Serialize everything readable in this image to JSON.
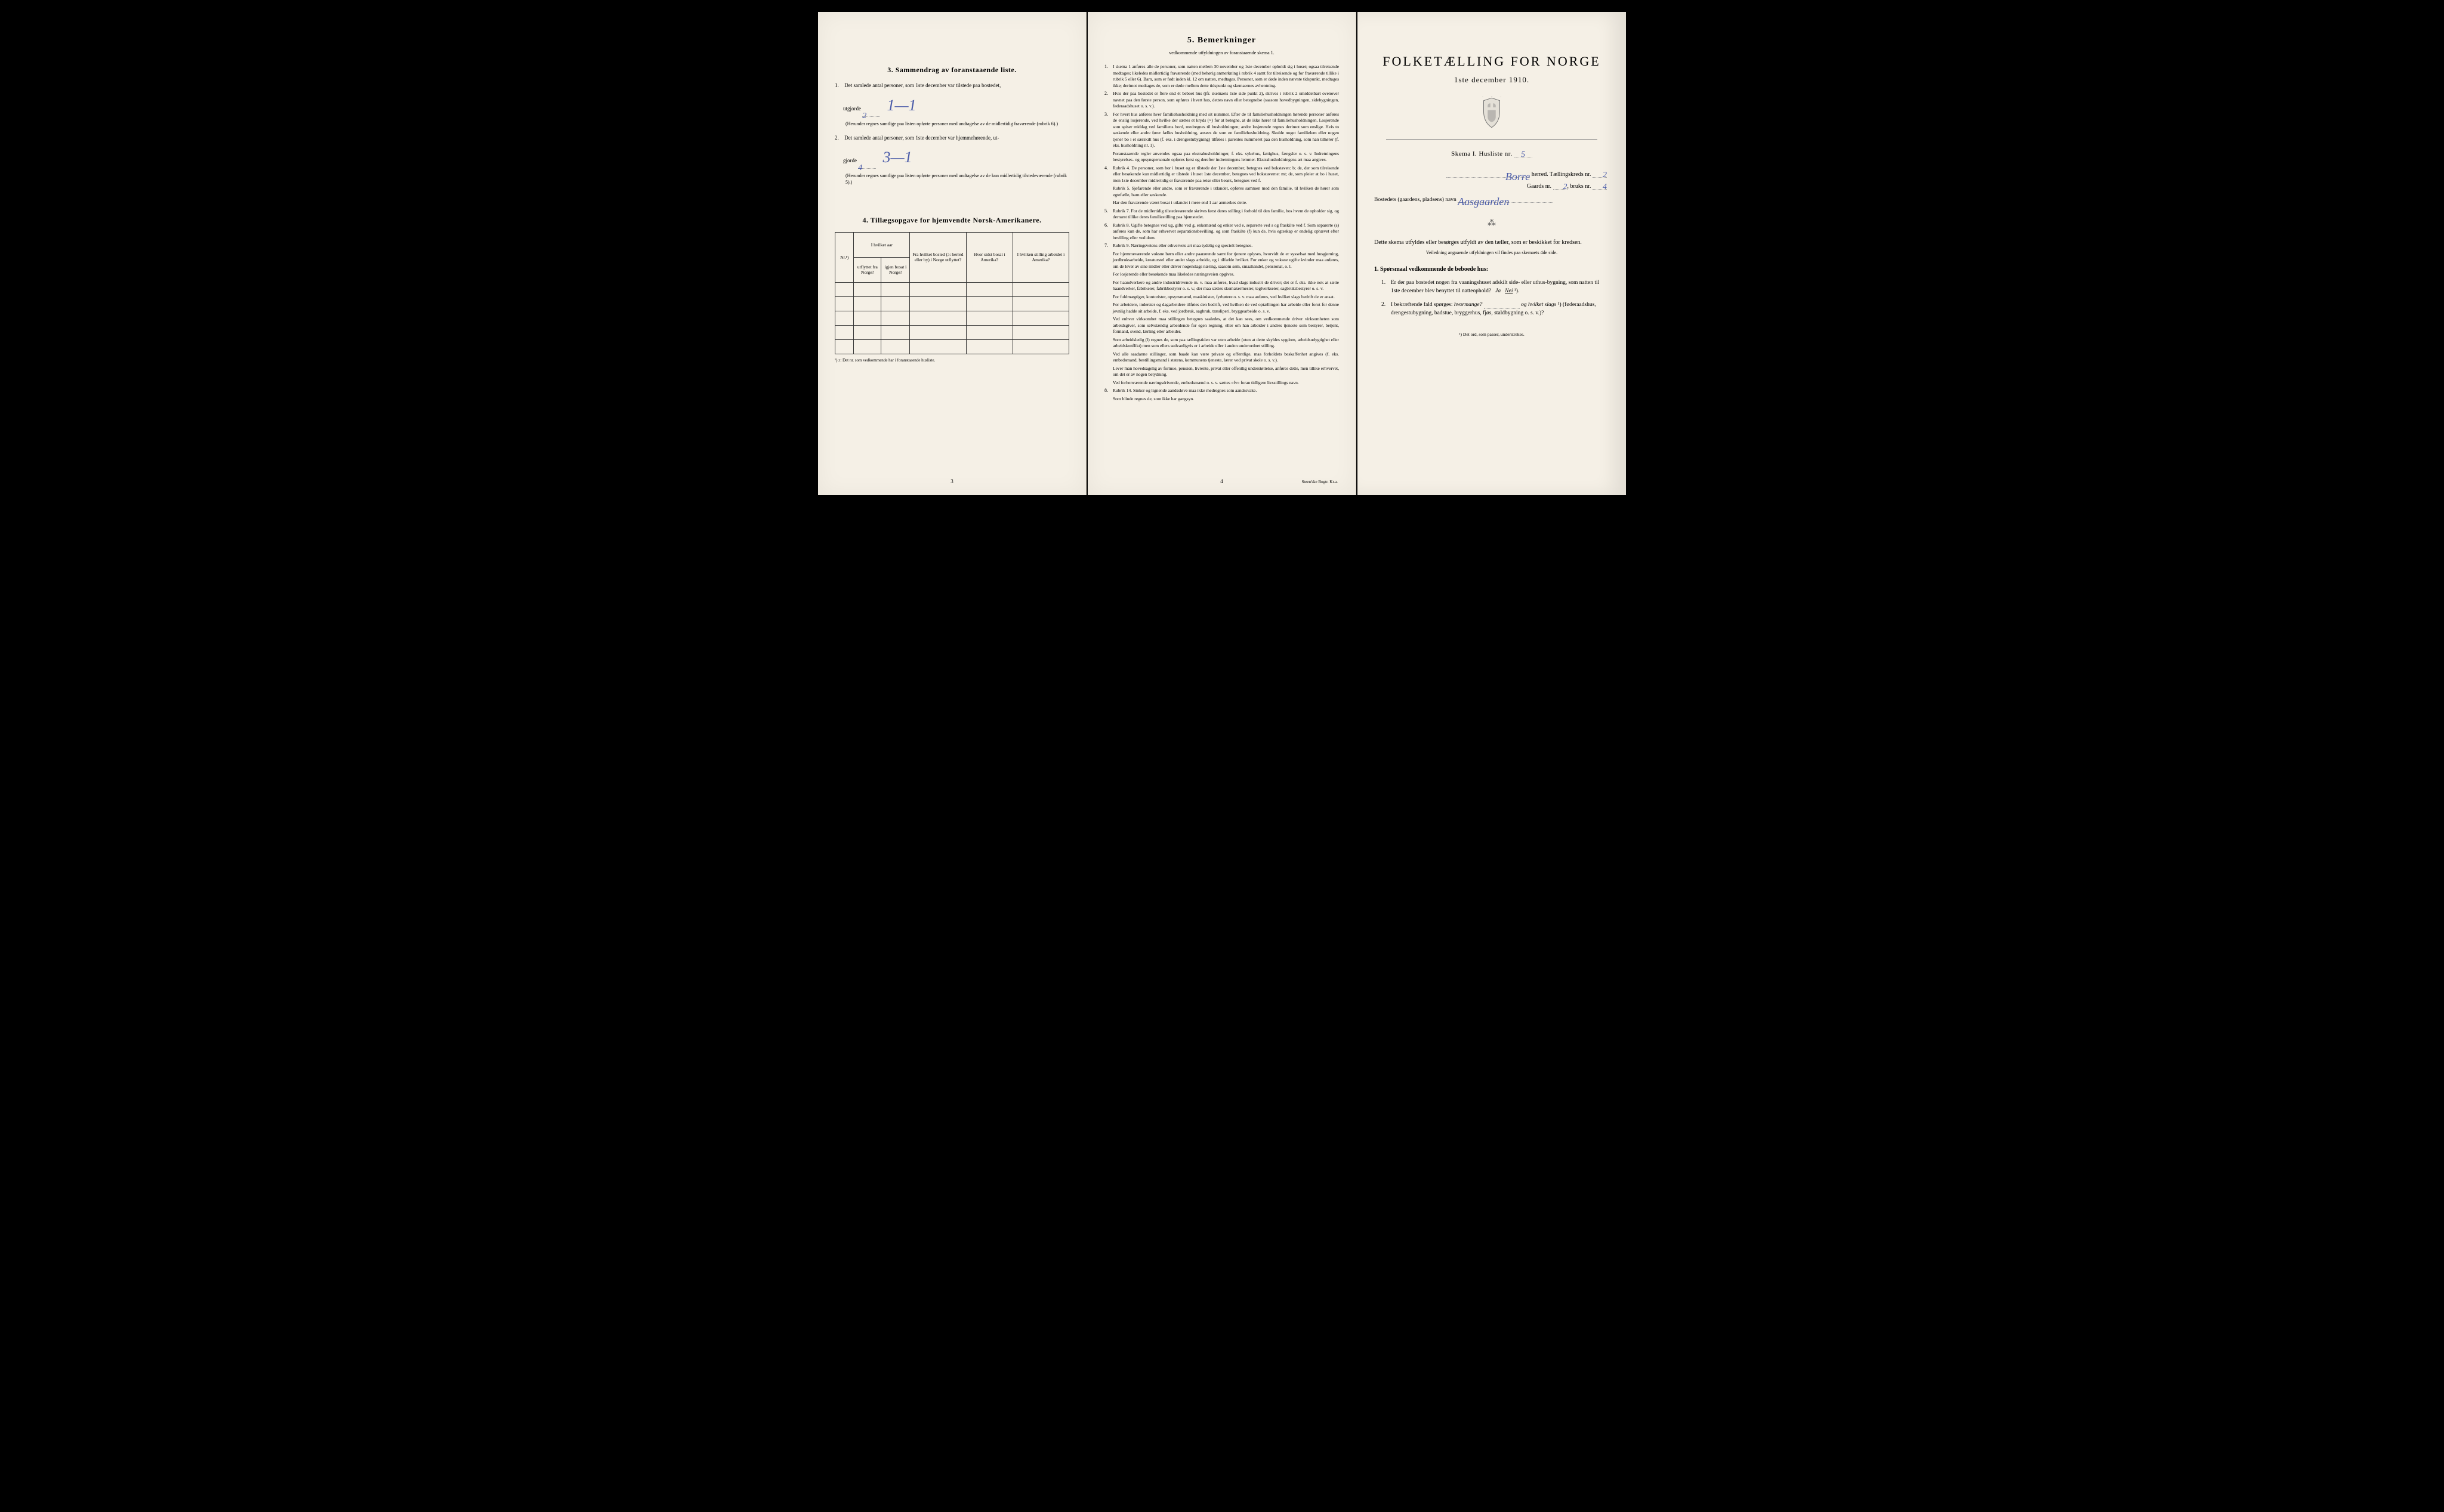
{
  "colors": {
    "paper": "#f5f0e6",
    "ink": "#1a1a1a",
    "handwriting": "#4a5ba8",
    "border": "#333333",
    "dotted": "#999999"
  },
  "page1": {
    "section3": {
      "heading": "3.   Sammendrag av foranstaaende liste.",
      "item1_prefix": "Det samlede antal personer, som 1ste december var tilstede paa bostedet,",
      "item1_label": "utgjorde",
      "item1_value": "2",
      "item1_hand": "1—1",
      "item1_paren": "(Herunder regnes samtlige paa listen opførte personer med undtagelse av de midlertidig fraværende (rubrik 6).)",
      "item2_prefix": "Det samlede antal personer, som 1ste december var hjemmehørende, ut-",
      "item2_label": "gjorde",
      "item2_value": "4",
      "item2_hand": "3—1",
      "item2_paren": "(Herunder regnes samtlige paa listen opførte personer med undtagelse av de kun midlertidig tilstedeværende (rubrik 5).)"
    },
    "section4": {
      "heading": "4.   Tillægsopgave for hjemvendte Norsk-Amerikanere.",
      "headers": [
        "Nr.¹)",
        "I hvilket aar",
        "Fra hvilket bosted (ɔ: herred eller by) i Norge utflyttet?",
        "Hvor sidst bosat i Amerika?",
        "I hvilken stilling arbeidet i Amerika?"
      ],
      "sub_headers": [
        "utflyttet fra Norge?",
        "igjen bosat i Norge?"
      ],
      "footnote": "¹) ɔ: Det nr. som vedkommende har i foranstaaende husliste."
    },
    "page_number": "3"
  },
  "page2": {
    "heading": "5.   Bemerkninger",
    "subtitle": "vedkommende utfyldningen av foranstaaende skema 1.",
    "items": [
      {
        "n": "1.",
        "t": "I skema 1 anføres alle de personer, som natten mellem 30 november og 1ste december opholdt sig i huset; ogsaa tilreisende medtages; likeledes midlertidig fraværende (med behørig anmerkning i rubrik 4 samt for tilreisende og for fraværende tillike i rubrik 5 eller 6). Barn, som er født inden kl. 12 om natten, medtages. Personer, som er døde inden nævnte tidspunkt, medtages ikke; derimot medtages de, som er døde mellem dette tidspunkt og skemaernes avhentning."
      },
      {
        "n": "2.",
        "t": "Hvis der paa bostedet er flere end ét beboet hus (jfr. skemaets 1ste side punkt 2), skrives i rubrik 2 umiddelbart ovenover navnet paa den første person, som opføres i hvert hus, dettes navn eller betegnelse (saasom hovedbygningen, sidebygningen, føderaadshuset o. s. v.)."
      },
      {
        "n": "3.",
        "t": "For hvert hus anføres hver familiehusholdning med sit nummer. Efter de til familiehusholdningen hørende personer anføres de enslig losjerende, ved hvilke der sættes et kryds (×) for at betegne, at de ikke hører til familiehusholdningen. Losjerende som spiser middag ved familiens bord, medregnes til husholdningen; andre losjerende regnes derimot som enslige. Hvis to søskende eller andre fører fælles husholdning, ansees de som en familiehusholdning. Skulde noget familielem eller nogen tjener bo i et særskilt hus (f. eks. i drengestubygning) tilføies i parentes nummeret paa den husholdning, som han tilhører (f. eks. husholdning nr. 1)."
      },
      {
        "n": "",
        "t": "Foranstaaende regler anvendes ogsaa paa ekstrahusholdninger, f. eks. sykehus, fattighus, fængsler o. s. v. Indretningens bestyrelses- og opsynspersonale opføres først og derefter indretningens lemmer. Ekstrahusholdningens art maa angives."
      },
      {
        "n": "4.",
        "t": "Rubrik 4. De personer, som bor i huset og er tilstede der 1ste december, betegnes ved bokstaven: b; de, der som tilreisende eller besøkende kun midlertidig er tilstede i huset 1ste december, betegnes ved bokstaverne: mt; de, som pleier at bo i huset, men 1ste december midlertidig er fraværende paa reise eller besøk, betegnes ved f."
      },
      {
        "n": "",
        "t": "Rubrik 5. Sjøfarende eller andre, som er fraværende i utlandet, opføres sammen med den familie, til hvilken de hører som egtefælle, barn eller søskende."
      },
      {
        "n": "",
        "t": "Har den fraværende været bosat i utlandet i mere end 1 aar anmerkes dette."
      },
      {
        "n": "5.",
        "t": "Rubrik 7. For de midlertidig tilstedeværende skrives først deres stilling i forhold til den familie, hos hvem de opholder sig, og dernæst tillike deres familiestilling paa hjemstedet."
      },
      {
        "n": "6.",
        "t": "Rubrik 8. Ugifte betegnes ved ug, gifte ved g, enkemænd og enker ved e, separerte ved s og fraskilte ved f. Som separerte (s) anføres kun de, som har erhvervet separationsbevilling, og som fraskilte (f) kun de, hvis egteskap er endelig ophævet efter bevilling eller ved dom."
      },
      {
        "n": "7.",
        "t": "Rubrik 9. Næringsveiens eller erhvervets art maa tydelig og specielt betegnes."
      },
      {
        "n": "",
        "t": "For hjemmeværende voksne børn eller andre paarørende samt for tjenere oplyses, hvorvidt de er sysselsat med husgjerning, jordbruksarbeide, kreaturstel eller andet slags arbeide, og i tilfælde hvilket. For enker og voksne ugifte kvinder maa anføres, om de lever av sine midler eller driver nogenslags næring, saasom søm, smaahandel, pensionat, o. l."
      },
      {
        "n": "",
        "t": "For losjerende eller besøkende maa likeledes næringsveien opgives."
      },
      {
        "n": "",
        "t": "For haandverkere og andre industridrivende m. v. maa anføres, hvad slags industri de driver; det er f. eks. ikke nok at sætte haandverker, fabrikeier, fabrikbestyrer o. s. v.; der maa sættes skomakermester, teglverkseier, sagbruksbestyrer o. s. v."
      },
      {
        "n": "",
        "t": "For fuldmægtiger, kontorister, opsynsmænd, maskinister, fyrbøtere o. s. v. maa anføres, ved hvilket slags bedrift de er ansat."
      },
      {
        "n": "",
        "t": "For arbeidere, inderster og dagarbeidere tilføies den bedrift, ved hvilken de ved optællingen har arbeide eller forut for denne jevnlig hadde sit arbeide, f. eks. ved jordbruk, sagbruk, træsliperi, bryggearbeide o. s. v."
      },
      {
        "n": "",
        "t": "Ved enhver virksomhet maa stillingen betegnes saaledes, at det kan sees, om vedkommende driver virksomheten som arbeidsgiver, som selvstændig arbeidende for egen regning, eller om han arbeider i andres tjeneste som bestyrer, betjent, formand, svend, lærling eller arbeider."
      },
      {
        "n": "",
        "t": "Som arbeidsledig (l) regnes de, som paa tællingstiden var uten arbeide (uten at dette skyldes sygdom, arbeidsudygtighet eller arbeidskonflikt) men som ellers sedvanligvis er i arbeide eller i anden underordnet stilling."
      },
      {
        "n": "",
        "t": "Ved alle saadanne stillinger, som baade kan være private og offentlige, maa forholdets beskaffenhet angives (f. eks. embedsmand, bestillingsmand i statens, kommunens tjeneste, lærer ved privat skole o. s. v.)."
      },
      {
        "n": "",
        "t": "Lever man hovedsagelig av formue, pension, livrente, privat eller offentlig understøttelse, anføres dette, men tillike erhvervet, om det er av nogen betydning."
      },
      {
        "n": "",
        "t": "Ved forhenværende næringsdrivende, embedsmænd o. s. v. sættes «fv» foran tidligere livsstillings navn."
      },
      {
        "n": "8.",
        "t": "Rubrik 14. Sinker og lignende aandssløve maa ikke medregnes som aandssvake."
      },
      {
        "n": "",
        "t": "Som blinde regnes de, som ikke har gangsyn."
      }
    ],
    "page_number": "4",
    "printer": "Steen'ske Bogtr. Kr.a."
  },
  "page3": {
    "title": "FOLKETÆLLING FOR NORGE",
    "date": "1ste december 1910.",
    "schema": "Skema I.   Husliste nr.",
    "schema_value": "5",
    "herred_value": "Borre",
    "herred_label": "herred.   Tællingskreds nr.",
    "kreds_value": "2",
    "gaard_label": "Gaards nr.",
    "gaard_value": "2",
    "bruks_label": "bruks nr.",
    "bruks_value": "4",
    "bostedet_label": "Bostedets (gaardens, pladsens) navn",
    "bostedet_value": "Aasgaarden",
    "intro": "Dette skema utfyldes eller besørges utfyldt av den tæller, som er beskikket for kredsen.",
    "intro_note": "Veiledning angaaende utfyldningen vil findes paa skemaets 4de side.",
    "q_header": "1. Spørsmaal vedkommende de beboede hus:",
    "q1": "Er der paa bostedet nogen fra vaaningshuset adskilt side- eller uthus-bygning, som natten til 1ste december blev benyttet til natteophold?",
    "q1_ja": "Ja",
    "q1_nei": "Nei",
    "q2": "I bekræftende fald spørges:",
    "q2_hvormange": "hvormange?",
    "q2_og": "og hvilket slags",
    "q2_paren": "(føderaadshus, drengestubygning, badstue, bryggerhus, fjøs, staldbygning o. s. v.)?",
    "footnote": "¹) Det ord, som passer, understrekes."
  }
}
